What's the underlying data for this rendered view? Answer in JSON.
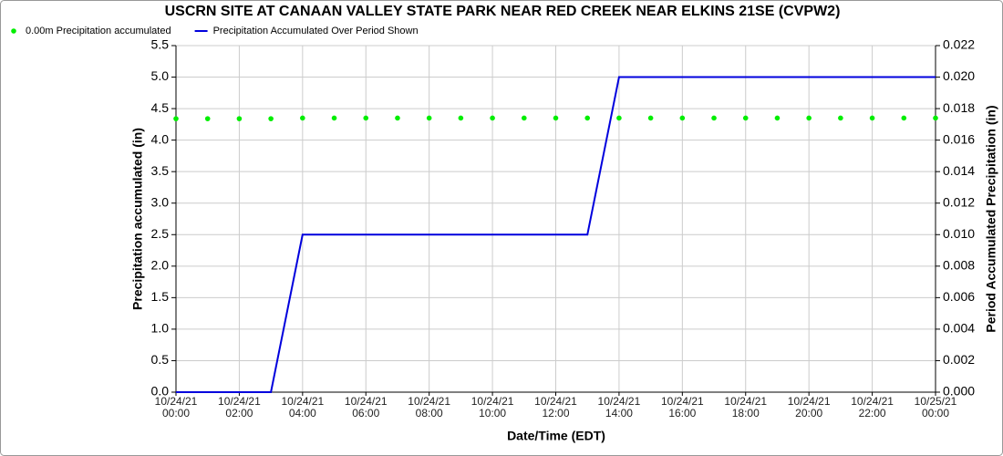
{
  "chart_data": {
    "type": "line",
    "title": "USCRN SITE AT CANAAN VALLEY STATE PARK NEAR RED CREEK NEAR ELKINS 21SE (CVPW2)",
    "x_label": "Date/Time (EDT)",
    "y_label": "Precipitation accumulated (in)",
    "y2_label": "Period Accumulated Precipitation (in)",
    "x": [
      0,
      1,
      2,
      3,
      4,
      5,
      6,
      7,
      8,
      9,
      10,
      11,
      12,
      13,
      14,
      15,
      16,
      17,
      18,
      19,
      20,
      21,
      22,
      23,
      24
    ],
    "xlim": [
      0,
      24
    ],
    "xticks": [
      {
        "value": 0,
        "label": "10/24/21\n00:00"
      },
      {
        "value": 2,
        "label": "10/24/21\n02:00"
      },
      {
        "value": 4,
        "label": "10/24/21\n04:00"
      },
      {
        "value": 6,
        "label": "10/24/21\n06:00"
      },
      {
        "value": 8,
        "label": "10/24/21\n08:00"
      },
      {
        "value": 10,
        "label": "10/24/21\n10:00"
      },
      {
        "value": 12,
        "label": "10/24/21\n12:00"
      },
      {
        "value": 14,
        "label": "10/24/21\n14:00"
      },
      {
        "value": 16,
        "label": "10/24/21\n16:00"
      },
      {
        "value": 18,
        "label": "10/24/21\n18:00"
      },
      {
        "value": 20,
        "label": "10/24/21\n20:00"
      },
      {
        "value": 22,
        "label": "10/24/21\n22:00"
      },
      {
        "value": 24,
        "label": "10/25/21\n00:00"
      }
    ],
    "ylim": [
      0,
      5.5
    ],
    "yticks": [
      {
        "value": 0,
        "label": "0.0"
      },
      0.5,
      {
        "value": 1,
        "label": "1.0"
      },
      1.5,
      {
        "value": 2,
        "label": "2.0"
      },
      2.5,
      {
        "value": 3,
        "label": "3.0"
      },
      3.5,
      {
        "value": 4,
        "label": "4.0"
      },
      4.5,
      {
        "value": 5,
        "label": "5.0"
      },
      5.5
    ],
    "y2lim": [
      0,
      0.022
    ],
    "y2ticks": [
      {
        "value": 0,
        "label": "0.000"
      },
      0.002,
      0.004,
      0.006,
      0.008,
      {
        "value": 0.01,
        "label": "0.010"
      },
      0.012,
      0.014,
      0.016,
      0.018,
      {
        "value": 0.02,
        "label": "0.020"
      },
      0.022
    ],
    "grid": true,
    "series": [
      {
        "name": "0.00m Precipitation accumulated",
        "color": "#00ee00",
        "style": "markers",
        "axis": "y",
        "values": [
          4.34,
          4.34,
          4.34,
          4.34,
          4.35,
          4.35,
          4.35,
          4.35,
          4.35,
          4.35,
          4.35,
          4.35,
          4.35,
          4.35,
          4.35,
          4.35,
          4.35,
          4.35,
          4.35,
          4.35,
          4.35,
          4.35,
          4.35,
          4.35,
          4.35
        ]
      },
      {
        "name": "Precipitation Accumulated Over Period Shown",
        "color": "#0000dd",
        "style": "line",
        "axis": "y2",
        "values": [
          0,
          0,
          0,
          0,
          0.01,
          0.01,
          0.01,
          0.01,
          0.01,
          0.01,
          0.01,
          0.01,
          0.01,
          0.01,
          0.02,
          0.02,
          0.02,
          0.02,
          0.02,
          0.02,
          0.02,
          0.02,
          0.02,
          0.02,
          0.02
        ]
      }
    ]
  }
}
